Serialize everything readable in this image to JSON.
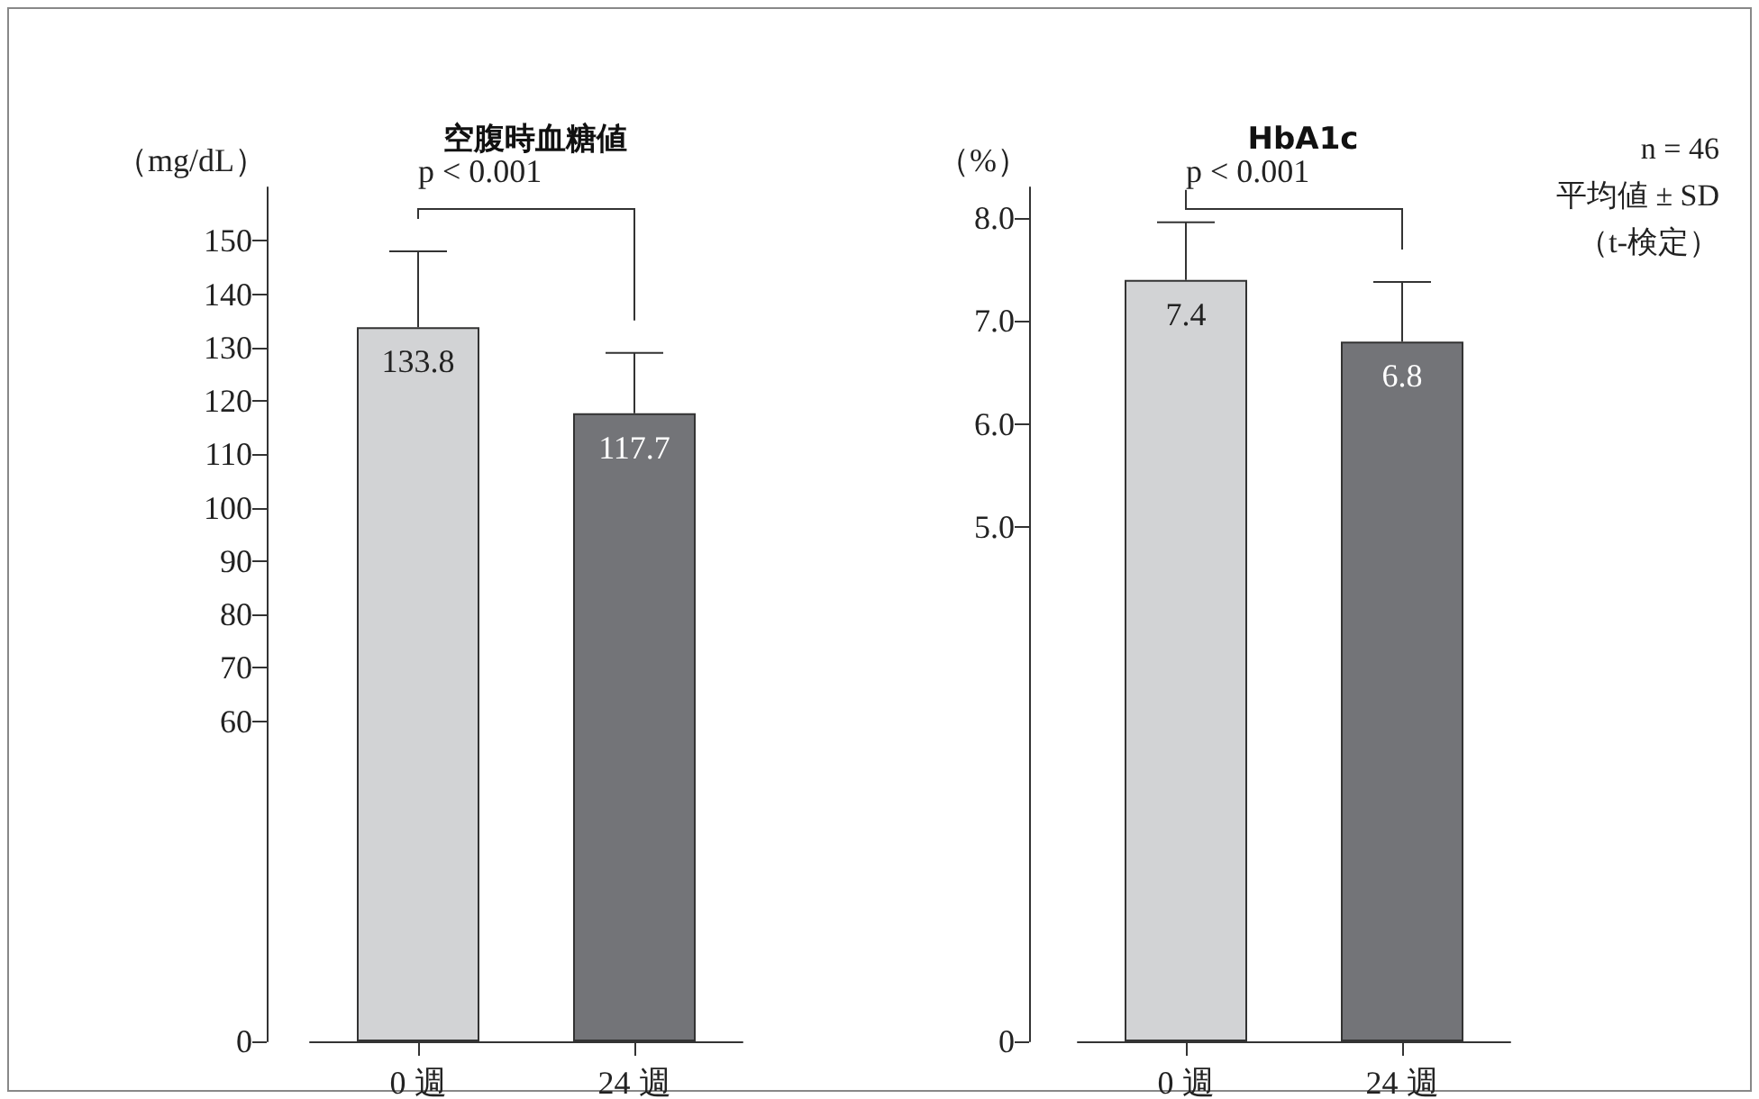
{
  "chart_data": [
    {
      "type": "bar",
      "title": "空腹時血糖値",
      "ylabel": "（mg/dL）",
      "categories": [
        "0 週",
        "24 週"
      ],
      "values": [
        133.8,
        117.7
      ],
      "colors": [
        "#d2d3d5",
        "#737478"
      ],
      "errors": [
        [
          133.8,
          148
        ],
        [
          117.7,
          129
        ]
      ],
      "data_labels": true,
      "ylim": [
        0,
        160
      ],
      "yticks": [
        0,
        60,
        70,
        80,
        90,
        100,
        110,
        120,
        130,
        140,
        150
      ],
      "grid": false,
      "annotations": [
        "p < 0.001"
      ]
    },
    {
      "type": "bar",
      "title": "HbA1c",
      "ylabel": "（%）",
      "categories": [
        "0 週",
        "24 週"
      ],
      "values": [
        7.4,
        6.8
      ],
      "colors": [
        "#d2d3d5",
        "#737478"
      ],
      "errors": [
        [
          7.4,
          7.96
        ],
        [
          6.8,
          7.38
        ]
      ],
      "data_labels": true,
      "ylim": [
        0,
        8.3
      ],
      "yticks": [
        0,
        {
          "value": 5,
          "label": "5.0"
        },
        {
          "value": 6,
          "label": "6.0"
        },
        {
          "value": 7,
          "label": "7.0"
        },
        {
          "value": 8,
          "label": "8.0"
        }
      ],
      "grid": false,
      "annotations": [
        "p < 0.001",
        "n = 46",
        "平均値 ± SD",
        "（t-検定）"
      ]
    }
  ]
}
